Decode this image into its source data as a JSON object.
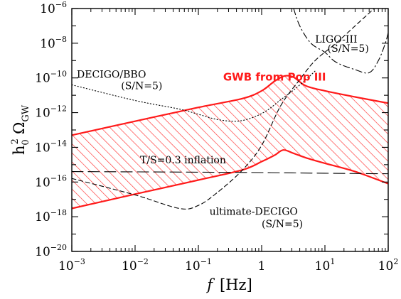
{
  "chart_data": {
    "type": "line",
    "xscale": "log",
    "yscale": "log",
    "xlim": [
      0.001,
      100
    ],
    "ylim": [
      1e-20,
      1e-06
    ],
    "grid": false,
    "xlabel": {
      "main": "f",
      "unit": "[Hz]"
    },
    "ylabel": {
      "h": "h",
      "sub0": "0",
      "sup2": "2",
      "omega": "Ω",
      "sub": "GW"
    },
    "x_ticks": [
      {
        "value": 0.001,
        "base": "10",
        "exp": "−3"
      },
      {
        "value": 0.01,
        "base": "10",
        "exp": "−2"
      },
      {
        "value": 0.1,
        "base": "10",
        "exp": "−1"
      },
      {
        "value": 1,
        "base": "1",
        "exp": ""
      },
      {
        "value": 10,
        "base": "10",
        "exp": "1"
      },
      {
        "value": 100,
        "base": "10",
        "exp": "2"
      }
    ],
    "y_ticks": [
      {
        "value": 1e-06,
        "base": "10",
        "exp": "−6"
      },
      {
        "value": 1e-08,
        "base": "10",
        "exp": "−8"
      },
      {
        "value": 1e-10,
        "base": "10",
        "exp": "−10"
      },
      {
        "value": 1e-12,
        "base": "10",
        "exp": "−12"
      },
      {
        "value": 1e-14,
        "base": "10",
        "exp": "−14"
      },
      {
        "value": 1e-16,
        "base": "10",
        "exp": "−16"
      },
      {
        "value": 1e-18,
        "base": "10",
        "exp": "−18"
      },
      {
        "value": 1e-20,
        "base": "10",
        "exp": "−20"
      }
    ],
    "series": [
      {
        "name": "GWB from Pop III",
        "kind": "band",
        "color": "#ff1a1a",
        "hatch": true,
        "upper": [
          [
            0.001,
            5e-14
          ],
          [
            0.01,
            3.2e-13
          ],
          [
            0.1,
            2e-12
          ],
          [
            0.5,
            6.5e-12
          ],
          [
            1,
            1.8e-11
          ],
          [
            1.6,
            6.5e-11
          ],
          [
            2.3,
            1.3e-10
          ],
          [
            3.2,
            1.1e-10
          ],
          [
            5,
            3.5e-11
          ],
          [
            10,
            1.8e-11
          ],
          [
            30,
            8e-12
          ],
          [
            100,
            3.5e-12
          ]
        ],
        "lower": [
          [
            0.001,
            3e-18
          ],
          [
            0.01,
            2e-17
          ],
          [
            0.1,
            1.3e-16
          ],
          [
            0.5,
            5e-16
          ],
          [
            1,
            1.5e-15
          ],
          [
            1.6,
            3.5e-15
          ],
          [
            2.2,
            7e-15
          ],
          [
            3.2,
            4.5e-15
          ],
          [
            5,
            2.5e-15
          ],
          [
            10,
            1.2e-15
          ],
          [
            30,
            4e-16
          ],
          [
            100,
            8e-17
          ]
        ]
      },
      {
        "name": "DECIGO/BBO",
        "kind": "line",
        "dash": "dotted",
        "points": [
          [
            0.001,
            4e-11
          ],
          [
            0.01,
            5e-12
          ],
          [
            0.05,
            1.6e-12
          ],
          [
            0.1,
            8e-13
          ],
          [
            0.2,
            4e-13
          ],
          [
            0.4,
            3.2e-13
          ],
          [
            0.7,
            5e-13
          ],
          [
            1.2,
            1.3e-12
          ],
          [
            2,
            5.5e-12
          ],
          [
            3.2,
            2e-11
          ],
          [
            5,
            8e-11
          ],
          [
            7,
            2.5e-10
          ]
        ]
      },
      {
        "name": "ultimate-DECIGO",
        "kind": "line",
        "dash": "dashed",
        "points": [
          [
            0.001,
            1.6e-16
          ],
          [
            0.01,
            1.8e-17
          ],
          [
            0.05,
            3e-18
          ],
          [
            0.1,
            4.5e-18
          ],
          [
            0.2,
            2.5e-17
          ],
          [
            0.5,
            5e-16
          ],
          [
            1,
            1.3e-14
          ],
          [
            2,
            2.5e-12
          ],
          [
            4,
            8e-11
          ],
          [
            7,
            1e-09
          ],
          [
            15,
            1e-08
          ],
          [
            30,
            1e-07
          ],
          [
            60,
            1e-06
          ]
        ]
      },
      {
        "name": "T/S=0.3 inflation",
        "kind": "line",
        "dash": "longdash",
        "points": [
          [
            0.001,
            4e-16
          ],
          [
            0.1,
            3.7e-16
          ],
          [
            1,
            3.5e-16
          ],
          [
            10,
            3.2e-16
          ],
          [
            100,
            3e-16
          ]
        ]
      },
      {
        "name": "LIGO-III",
        "kind": "line",
        "dash": "dashdot",
        "points": [
          [
            3.2,
            1e-06
          ],
          [
            4,
            1e-07
          ],
          [
            6,
            1e-08
          ],
          [
            10,
            3e-09
          ],
          [
            15,
            8e-10
          ],
          [
            30,
            3e-10
          ],
          [
            50,
            2e-10
          ],
          [
            70,
            1e-09
          ],
          [
            90,
            1e-08
          ],
          [
            100,
            4e-08
          ]
        ]
      }
    ],
    "annotations": [
      {
        "id": "gwb",
        "text": "GWB from Pop III",
        "x": 1.6,
        "y": 7e-11,
        "anchor": "middle",
        "color": "#ff1a1a"
      },
      {
        "id": "decigo",
        "text": "DECIGO/BBO",
        "x": 0.0012,
        "y": 1e-10,
        "anchor": "start"
      },
      {
        "id": "decigo-sn",
        "text": "(S/N=5)",
        "x": 0.006,
        "y": 2.3e-11,
        "anchor": "start"
      },
      {
        "id": "ligo",
        "text": "LIGO-III",
        "x": 7,
        "y": 1.1e-08,
        "anchor": "start"
      },
      {
        "id": "ligo-sn",
        "text": "(S/N=5)",
        "x": 11,
        "y": 3.2e-09,
        "anchor": "start"
      },
      {
        "id": "inflation",
        "text": "T/S=0.3 inflation",
        "x": 0.012,
        "y": 1.2e-15,
        "anchor": "start"
      },
      {
        "id": "udecigo",
        "text": "ultimate-DECIGO",
        "x": 0.15,
        "y": 1.3e-18,
        "anchor": "start"
      },
      {
        "id": "udecigo-sn",
        "text": "(S/N=5)",
        "x": 1,
        "y": 2.5e-19,
        "anchor": "start"
      }
    ]
  }
}
